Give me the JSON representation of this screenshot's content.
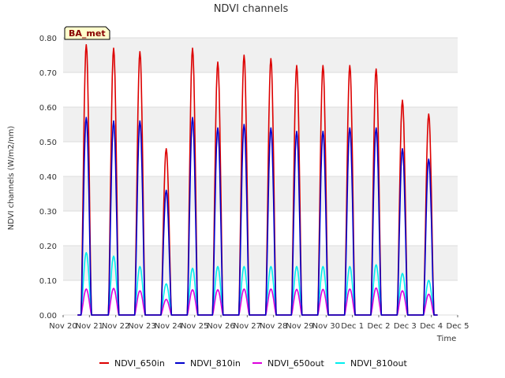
{
  "chart_data": {
    "type": "line",
    "title": "NDVI channels",
    "xlabel": "Time",
    "ylabel": "NDVI channels (W/m2/nm)",
    "badge": "BA_met",
    "ylim": [
      0.0,
      0.8
    ],
    "yticks": [
      "0.00",
      "0.10",
      "0.20",
      "0.30",
      "0.40",
      "0.50",
      "0.60",
      "0.70",
      "0.80"
    ],
    "xticks": [
      "Nov 20",
      "Nov 21",
      "Nov 22",
      "Nov 23",
      "Nov 24",
      "Nov 25",
      "Nov 26",
      "Nov 27",
      "Nov 28",
      "Nov 29",
      "Nov 30",
      "Dec 1",
      "Dec 2",
      "Dec 3",
      "Dec 4",
      "Dec 5"
    ],
    "x_units": "days since Nov 20",
    "xlim": [
      0,
      15
    ],
    "day_centers": [
      0.88,
      1.92,
      2.92,
      3.92,
      4.92,
      5.88,
      6.88,
      7.9,
      8.88,
      9.88,
      10.9,
      11.9,
      12.9,
      13.9
    ],
    "series": [
      {
        "name": "NDVI_650in",
        "color": "#dd0000",
        "peaks": [
          0.78,
          0.77,
          0.76,
          0.48,
          0.77,
          0.73,
          0.75,
          0.74,
          0.72,
          0.72,
          0.72,
          0.71,
          0.62,
          0.58
        ]
      },
      {
        "name": "NDVI_810in",
        "color": "#0000cc",
        "peaks": [
          0.57,
          0.56,
          0.56,
          0.36,
          0.57,
          0.54,
          0.55,
          0.54,
          0.53,
          0.53,
          0.54,
          0.54,
          0.48,
          0.45
        ]
      },
      {
        "name": "NDVI_650out",
        "color": "#dd00dd",
        "peaks": [
          0.075,
          0.077,
          0.07,
          0.045,
          0.073,
          0.073,
          0.075,
          0.075,
          0.074,
          0.074,
          0.075,
          0.078,
          0.07,
          0.06
        ]
      },
      {
        "name": "NDVI_810out",
        "color": "#00eeee",
        "peaks": [
          0.18,
          0.17,
          0.14,
          0.09,
          0.135,
          0.14,
          0.14,
          0.14,
          0.14,
          0.14,
          0.14,
          0.145,
          0.12,
          0.1
        ]
      }
    ]
  }
}
